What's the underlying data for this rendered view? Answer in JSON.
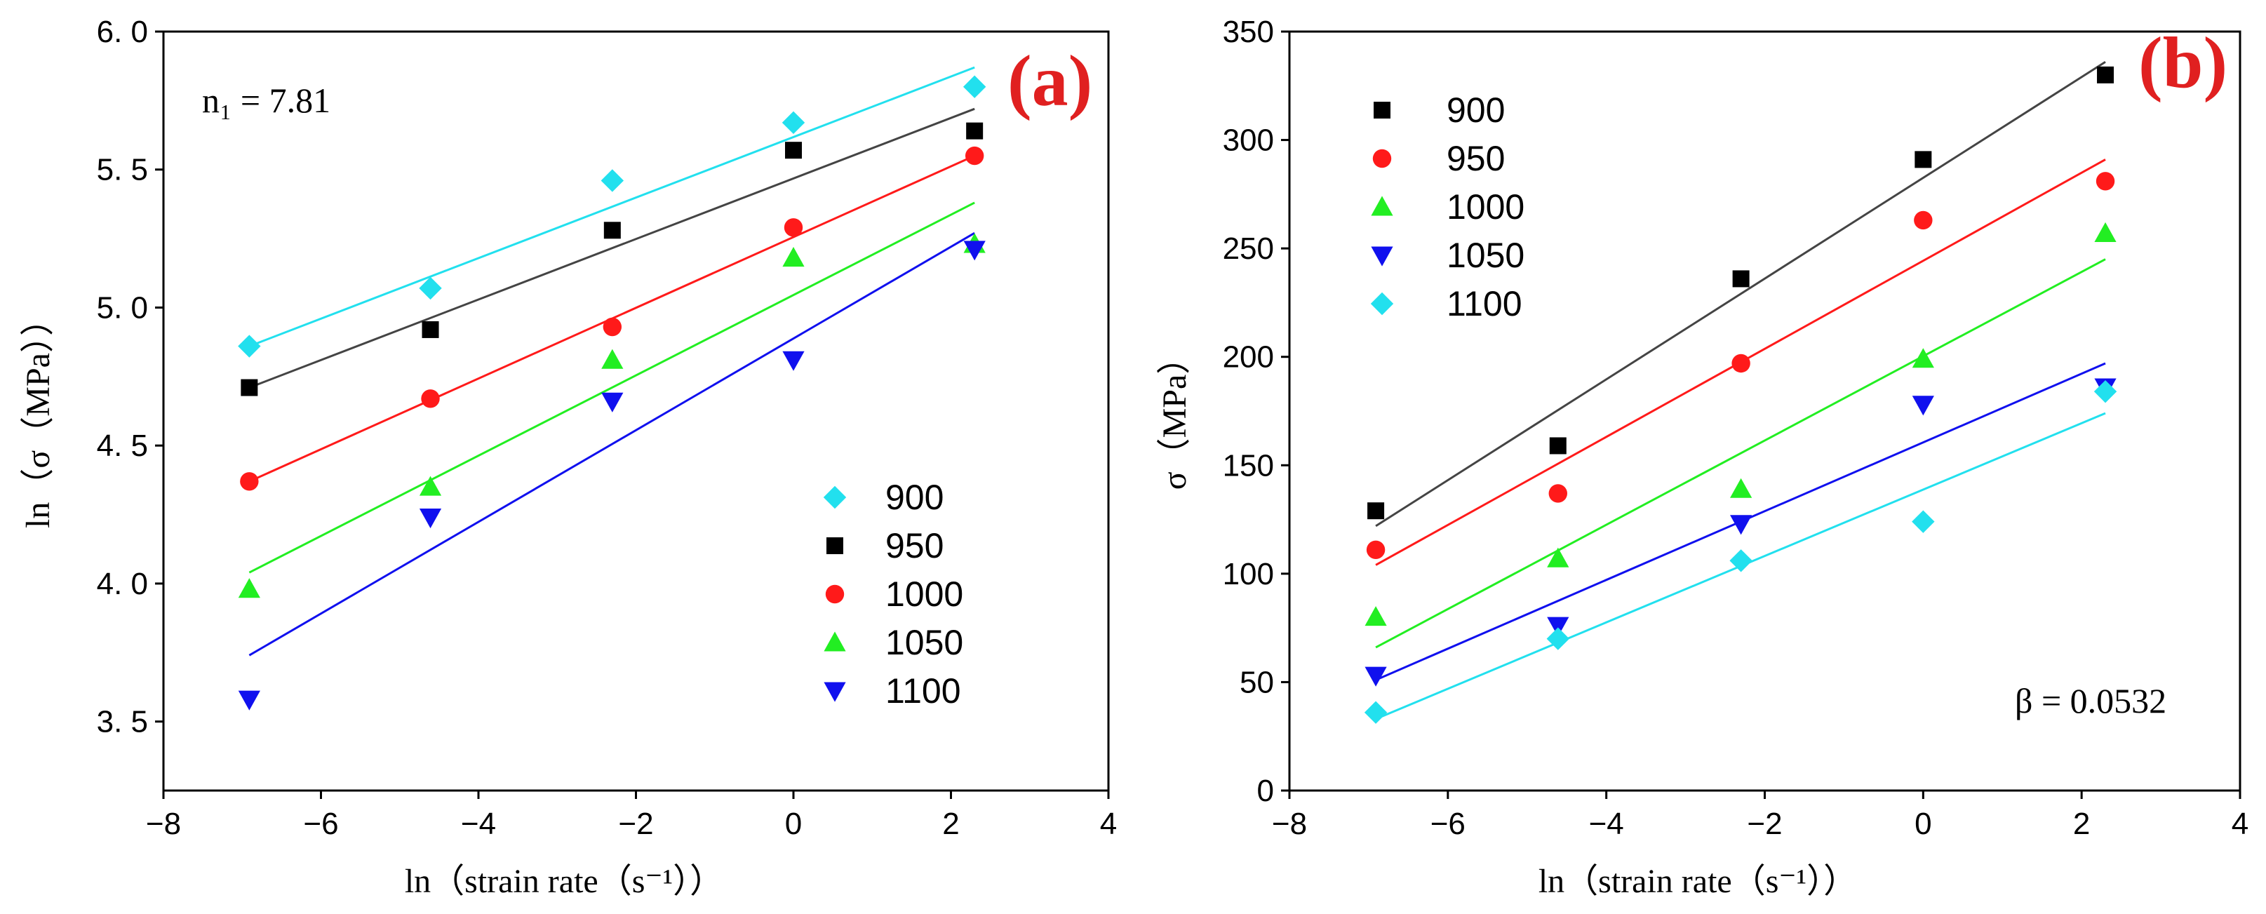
{
  "chart_data": [
    {
      "panel": "a",
      "type": "scatter",
      "panel_label": "(a)",
      "xlabel": "ln（strain rate（s⁻¹））",
      "ylabel": "ln（σ（MPa））",
      "xlim": [
        -8,
        4
      ],
      "ylim": [
        3.25,
        6.0
      ],
      "xticks": [
        -8,
        -6,
        -4,
        -2,
        0,
        2,
        4
      ],
      "xtick_labels": [
        "−8",
        "−6",
        "−4",
        "−2",
        "0",
        "2",
        "4"
      ],
      "yticks": [
        3.5,
        4.0,
        4.5,
        5.0,
        5.5,
        6.0
      ],
      "ytick_labels": [
        "3. 5",
        "4. 0",
        "4. 5",
        "5. 0",
        "5. 5",
        "6. 0"
      ],
      "annotation": "n₁ = 7.81",
      "legend_position": "lower-right",
      "x": [
        -6.91,
        -4.61,
        -2.3,
        0.0,
        2.3
      ],
      "series": [
        {
          "name": "900",
          "color": "#22e0ee",
          "marker": "diamond",
          "values": [
            4.86,
            5.07,
            5.46,
            5.67,
            5.8
          ],
          "fit": [
            4.86,
            5.87
          ]
        },
        {
          "name": "950",
          "color": "#000000",
          "marker": "square",
          "values": [
            4.71,
            4.92,
            5.28,
            5.57,
            5.64
          ],
          "fit": [
            4.71,
            5.72
          ]
        },
        {
          "name": "1000",
          "color": "#ff1a1a",
          "marker": "circle",
          "values": [
            4.37,
            4.67,
            4.93,
            5.29,
            5.55
          ],
          "fit": [
            4.37,
            5.55
          ]
        },
        {
          "name": "1050",
          "color": "#22ee22",
          "marker": "triangle-up",
          "values": [
            3.98,
            4.35,
            4.81,
            5.18,
            5.23
          ],
          "fit": [
            4.04,
            5.38
          ]
        },
        {
          "name": "1100",
          "color": "#1010ee",
          "marker": "triangle-down",
          "values": [
            3.58,
            4.24,
            4.66,
            4.81,
            5.21
          ],
          "fit": [
            3.74,
            5.27
          ]
        }
      ]
    },
    {
      "panel": "b",
      "type": "scatter",
      "panel_label": "(b)",
      "xlabel": "ln（strain rate（s⁻¹））",
      "ylabel": "σ（MPa）",
      "xlim": [
        -8,
        4
      ],
      "ylim": [
        0,
        350
      ],
      "xticks": [
        -8,
        -6,
        -4,
        -2,
        0,
        2,
        4
      ],
      "xtick_labels": [
        "−8",
        "−6",
        "−4",
        "−2",
        "0",
        "2",
        "4"
      ],
      "yticks": [
        0,
        50,
        100,
        150,
        200,
        250,
        300,
        350
      ],
      "ytick_labels": [
        "0",
        "50",
        "100",
        "150",
        "200",
        "250",
        "300",
        "350"
      ],
      "annotation": "β = 0.0532",
      "legend_position": "upper-left",
      "x": [
        -6.91,
        -4.61,
        -2.3,
        0.0,
        2.3
      ],
      "series": [
        {
          "name": "900",
          "color": "#000000",
          "marker": "square",
          "values": [
            129,
            159,
            236,
            291,
            330
          ],
          "fit": [
            122,
            336
          ]
        },
        {
          "name": "950",
          "color": "#ff1a1a",
          "marker": "circle",
          "values": [
            111,
            137,
            197,
            263,
            281
          ],
          "fit": [
            104,
            291
          ]
        },
        {
          "name": "1000",
          "color": "#22ee22",
          "marker": "triangle-up",
          "values": [
            80,
            107,
            139,
            199,
            257
          ],
          "fit": [
            66,
            245
          ]
        },
        {
          "name": "1050",
          "color": "#1010ee",
          "marker": "triangle-down",
          "values": [
            53,
            76,
            123,
            178,
            186
          ],
          "fit": [
            51,
            197
          ]
        },
        {
          "name": "1100",
          "color": "#22e0ee",
          "marker": "diamond",
          "values": [
            36,
            70,
            106,
            124,
            184
          ],
          "fit": [
            33,
            174
          ]
        }
      ]
    }
  ]
}
